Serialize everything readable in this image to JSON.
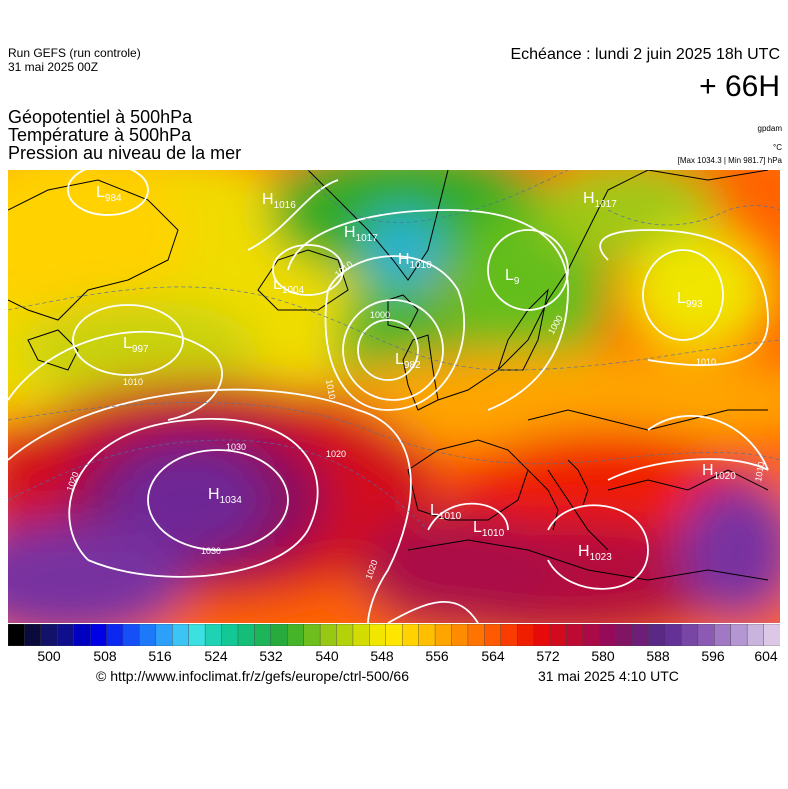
{
  "header": {
    "run_name": "Run GEFS (run controle)",
    "run_date": "31 mai 2025 00Z",
    "valid_time": "Echéance : lundi 2 juin 2025 18h UTC",
    "lead_time": "+ 66H"
  },
  "titles": [
    "Géopotentiel à 500hPa",
    "Température à 500hPa",
    "Pression au niveau de la mer"
  ],
  "units": {
    "geopotential": "gpdam",
    "temperature": "°C",
    "pressure": "[Max 1034.3 | Min 981.7] hPa"
  },
  "pressure_centers": [
    {
      "type": "L",
      "value": "984"
    },
    {
      "type": "H",
      "value": "1016"
    },
    {
      "type": "H",
      "value": "1017"
    },
    {
      "type": "L",
      "value": "1004"
    },
    {
      "type": "H",
      "value": "1010"
    },
    {
      "type": "L",
      "value": "997"
    },
    {
      "type": "L",
      "value": "982"
    },
    {
      "type": "L",
      "value": "9"
    },
    {
      "type": "H",
      "value": "1017"
    },
    {
      "type": "L",
      "value": "993"
    },
    {
      "type": "H",
      "value": "1034"
    },
    {
      "type": "L",
      "value": "1010"
    },
    {
      "type": "L",
      "value": "1010"
    },
    {
      "type": "H",
      "value": "1023"
    },
    {
      "type": "H",
      "value": "1020"
    }
  ],
  "isobar_labels": [
    "1030",
    "1030",
    "1020",
    "1020",
    "1020",
    "1010",
    "1010",
    "1010",
    "1000",
    "1000",
    "1010",
    "1010"
  ],
  "colorbar": {
    "ticks": [
      "500",
      "508",
      "516",
      "524",
      "532",
      "540",
      "548",
      "556",
      "564",
      "572",
      "580",
      "588",
      "596",
      "604"
    ],
    "colors": [
      "#000000",
      "#0b0a3c",
      "#13126a",
      "#0f0f8c",
      "#0000c0",
      "#0000e6",
      "#0a28f0",
      "#1450f5",
      "#1e78fa",
      "#2ca0fa",
      "#3cc4f5",
      "#3ce0e0",
      "#20d2b4",
      "#14c896",
      "#14be78",
      "#1eb45a",
      "#28aa3c",
      "#46b428",
      "#6ebe1e",
      "#96c814",
      "#b4d20a",
      "#d2dc00",
      "#f0e600",
      "#ffe600",
      "#ffd200",
      "#ffbe00",
      "#ffa500",
      "#ff8c00",
      "#ff7300",
      "#ff5a00",
      "#fa3c00",
      "#f01e00",
      "#e60a0a",
      "#d20a1e",
      "#be0a32",
      "#aa0a46",
      "#960a5a",
      "#821464",
      "#6e1e78",
      "#5a2887",
      "#643296",
      "#7846a5",
      "#8c5ab4",
      "#a078c3",
      "#b496d2",
      "#c8b4dc",
      "#dcc8e6"
    ]
  },
  "footer": {
    "credit": "© http://www.infoclimat.fr/z/gefs/europe/ctrl-500/66",
    "generated": "31 mai 2025  4:10 UTC"
  }
}
